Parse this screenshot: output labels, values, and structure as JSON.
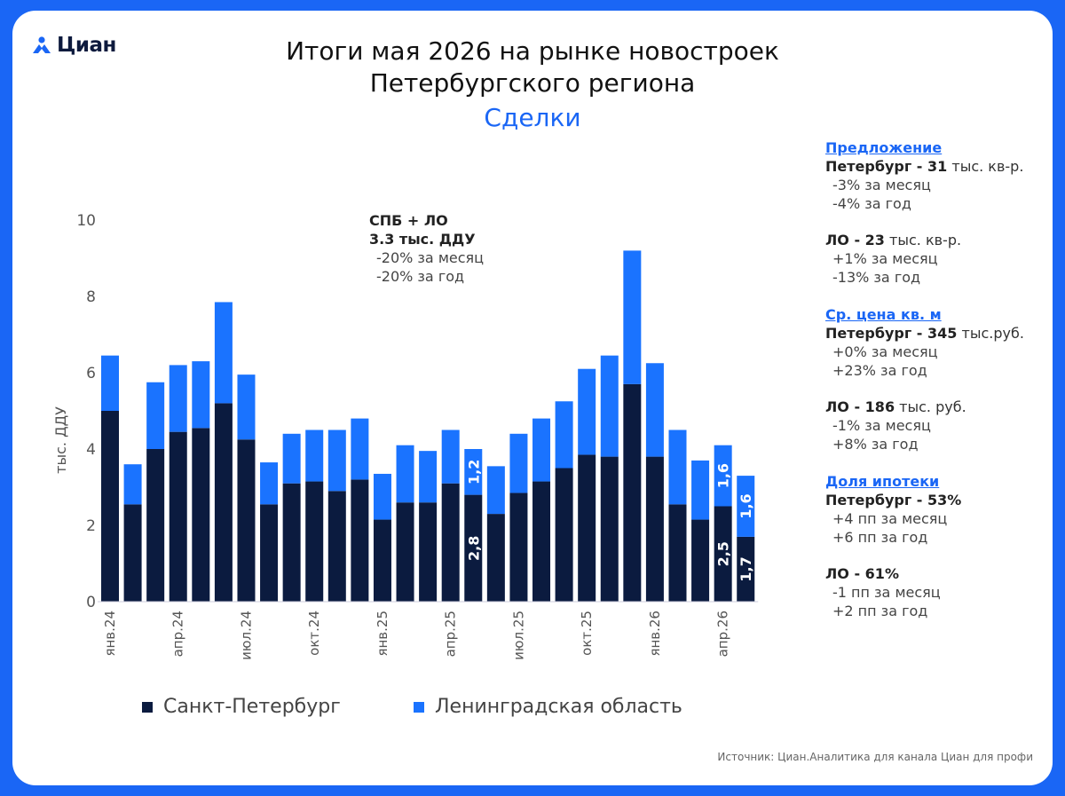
{
  "logo": {
    "text": "Циан"
  },
  "header": {
    "title_line1": "Итоги мая 2026 на рынке новостроек",
    "title_line2": "Петербургского региона",
    "subtitle": "Сделки"
  },
  "chart_data": {
    "type": "bar",
    "stacked": true,
    "ylabel": "тыс. ДДУ",
    "ylim": [
      0,
      10
    ],
    "yticks": [
      0,
      2,
      4,
      6,
      8,
      10
    ],
    "categories": [
      "янв.24",
      "фев.24",
      "мар.24",
      "апр.24",
      "май.24",
      "июн.24",
      "июл.24",
      "авг.24",
      "сен.24",
      "окт.24",
      "ноя.24",
      "дек.24",
      "янв.25",
      "фев.25",
      "мар.25",
      "апр.25",
      "май.25",
      "июн.25",
      "июл.25",
      "авг.25",
      "сен.25",
      "окт.25",
      "ноя.25",
      "дек.25",
      "янв.26",
      "фев.26",
      "мар.26",
      "апр.26",
      "май.26"
    ],
    "xtick_labels": [
      "янв.24",
      "",
      "",
      "апр.24",
      "",
      "",
      "июл.24",
      "",
      "",
      "окт.24",
      "",
      "",
      "янв.25",
      "",
      "",
      "апр.25",
      "",
      "",
      "июл.25",
      "",
      "",
      "окт.25",
      "",
      "",
      "янв.26",
      "",
      "",
      "апр.26",
      ""
    ],
    "series": [
      {
        "name": "Санкт-Петербург",
        "color": "#0b1b3f",
        "values": [
          5.0,
          2.55,
          4.0,
          4.45,
          4.55,
          5.2,
          4.25,
          2.55,
          3.1,
          3.15,
          2.9,
          3.2,
          2.15,
          2.6,
          2.6,
          3.1,
          2.8,
          2.3,
          2.85,
          3.15,
          3.5,
          3.85,
          3.8,
          5.7,
          3.8,
          2.55,
          2.15,
          2.5,
          1.7
        ]
      },
      {
        "name": "Ленинградская область",
        "color": "#1a73ff",
        "values": [
          1.45,
          1.05,
          1.75,
          1.75,
          1.75,
          2.65,
          1.7,
          1.1,
          1.3,
          1.35,
          1.6,
          1.6,
          1.2,
          1.5,
          1.35,
          1.4,
          1.2,
          1.25,
          1.55,
          1.65,
          1.75,
          2.25,
          2.65,
          3.5,
          2.45,
          1.95,
          1.55,
          1.6,
          1.6
        ]
      }
    ],
    "data_labels": [
      {
        "index": 16,
        "series": 0,
        "text": "2,8"
      },
      {
        "index": 16,
        "series": 1,
        "text": "1,2"
      },
      {
        "index": 27,
        "series": 0,
        "text": "2,5"
      },
      {
        "index": 27,
        "series": 1,
        "text": "1,6"
      },
      {
        "index": 28,
        "series": 0,
        "text": "1,7"
      },
      {
        "index": 28,
        "series": 1,
        "text": "1,6"
      }
    ],
    "grid": false,
    "legend_position": "bottom"
  },
  "note": {
    "line1": "СПБ + ЛО",
    "line2": "3.3 тыс. ДДУ",
    "line3": "-20% за месяц",
    "line4": "-20% за год"
  },
  "sidebar": {
    "offer": {
      "header": "Предложение",
      "spb_bold": "Петербург - 31",
      "spb_unit": " тыс. кв-р.",
      "spb_m": "-3% за месяц",
      "spb_y": "-4% за год",
      "lo_bold": "ЛО - 23",
      "lo_unit": " тыс. кв-р.",
      "lo_m": "+1% за месяц",
      "lo_y": "-13% за год"
    },
    "price": {
      "header": "Ср. цена кв. м",
      "spb_bold": "Петербург - 345",
      "spb_unit": " тыс.руб.",
      "spb_m": "+0% за месяц",
      "spb_y": "+23% за год",
      "lo_bold": "ЛО - 186",
      "lo_unit": " тыс. руб.",
      "lo_m": "-1% за месяц",
      "lo_y": "+8% за год"
    },
    "mortgage": {
      "header": "Доля ипотеки",
      "spb_bold": "Петербург - 53%",
      "spb_m": "+4 пп за месяц",
      "spb_y": "+6 пп за год",
      "lo_bold": "ЛО - 61%",
      "lo_m": "-1 пп за месяц",
      "lo_y": "+2 пп за год"
    }
  },
  "legend": {
    "spb": "Санкт-Петербург",
    "lo": "Ленинградская область"
  },
  "footer": {
    "source": "Источник: Циан.Аналитика для канала Циан для профи"
  }
}
